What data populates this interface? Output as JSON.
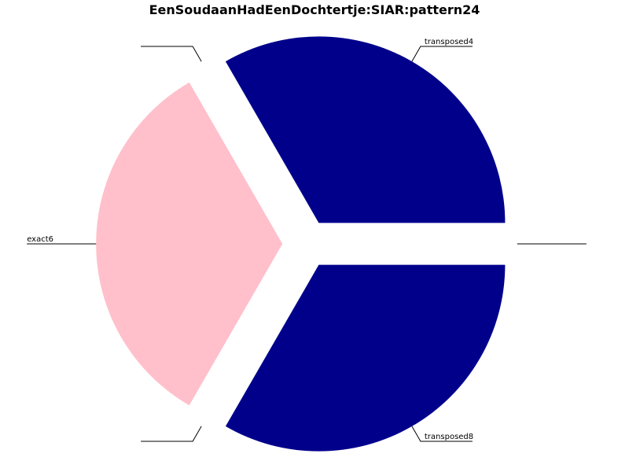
{
  "chart_data": {
    "type": "pie",
    "title": "EenSoudaanHadEenDochtertje:SIAR:pattern24",
    "slices": [
      {
        "label": "transposed4",
        "value": 1,
        "color": "#00008b"
      },
      {
        "label": "",
        "value": 0,
        "color": "#ffffff"
      },
      {
        "label": "exact6",
        "value": 1,
        "color": "#ffc0cb"
      },
      {
        "label": "",
        "value": 0,
        "color": "#ffffff"
      },
      {
        "label": "transposed8",
        "value": 1,
        "color": "#00008b"
      },
      {
        "label": "",
        "value": 0,
        "color": "#ffffff"
      }
    ],
    "exploded": true,
    "legend": "none"
  }
}
